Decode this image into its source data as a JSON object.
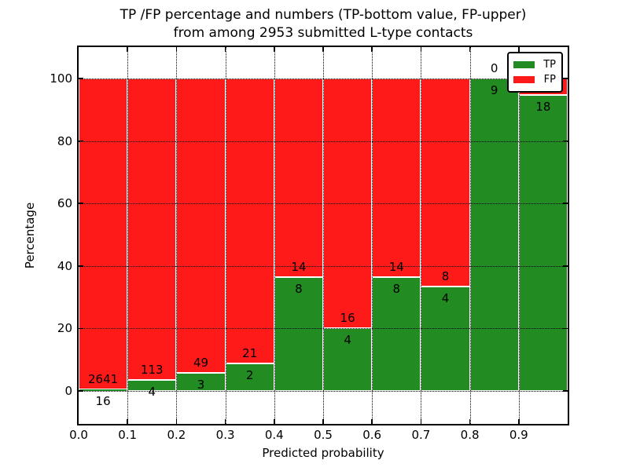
{
  "title": {
    "line1": "TP /FP percentage and numbers (TP-bottom value, FP-upper)",
    "line2": "from among 2953 submitted L-type contacts"
  },
  "axes": {
    "x_label": "Predicted probability",
    "y_label": "Percentage",
    "x_tick_labels": [
      "0.0",
      "0.1",
      "0.2",
      "0.3",
      "0.4",
      "0.5",
      "0.6",
      "0.7",
      "0.8",
      "0.9"
    ],
    "y_tick_labels": [
      "0",
      "20",
      "40",
      "60",
      "80",
      "100"
    ],
    "y_tick_values": [
      0,
      20,
      40,
      60,
      80,
      100
    ]
  },
  "legend": {
    "items": [
      {
        "label": "TP",
        "color": "#228B22"
      },
      {
        "label": "FP",
        "color": "#FF1A1A"
      }
    ]
  },
  "colors": {
    "tp": "#228B22",
    "fp": "#FF1A1A",
    "grid": "#000000",
    "frame": "#000000",
    "background": "#FFFFFF"
  },
  "chart_data": {
    "type": "bar",
    "stacked": true,
    "normalized": "each bar scaled to 100%",
    "title": "TP /FP percentage and numbers (TP-bottom value, FP-upper) from among 2953 submitted L-type contacts",
    "xlabel": "Predicted probability",
    "ylabel": "Percentage",
    "xlim": [
      0.0,
      1.0
    ],
    "ylim": [
      -11,
      110
    ],
    "grid": "dotted",
    "legend_position": "upper right",
    "total_submitted_contacts": 2953,
    "bin_width": 0.1,
    "categories": [
      "0.0-0.1",
      "0.1-0.2",
      "0.2-0.3",
      "0.3-0.4",
      "0.4-0.5",
      "0.5-0.6",
      "0.6-0.7",
      "0.7-0.8",
      "0.8-0.9",
      "0.9-1.0"
    ],
    "series": [
      {
        "name": "TP",
        "color": "#228B22",
        "values": [
          16,
          4,
          3,
          2,
          8,
          4,
          8,
          4,
          9,
          18
        ]
      },
      {
        "name": "FP",
        "color": "#FF1A1A",
        "values": [
          2641,
          113,
          49,
          21,
          14,
          16,
          14,
          8,
          0,
          1
        ]
      }
    ],
    "bins": [
      {
        "range": "0.0-0.1",
        "tp": 16,
        "fp": 2641,
        "tp_pct": 0.6
      },
      {
        "range": "0.1-0.2",
        "tp": 4,
        "fp": 113,
        "tp_pct": 3.4
      },
      {
        "range": "0.2-0.3",
        "tp": 3,
        "fp": 49,
        "tp_pct": 5.8
      },
      {
        "range": "0.3-0.4",
        "tp": 2,
        "fp": 21,
        "tp_pct": 8.7
      },
      {
        "range": "0.4-0.5",
        "tp": 8,
        "fp": 14,
        "tp_pct": 36.4
      },
      {
        "range": "0.5-0.6",
        "tp": 4,
        "fp": 16,
        "tp_pct": 20.0
      },
      {
        "range": "0.6-0.7",
        "tp": 8,
        "fp": 14,
        "tp_pct": 36.4
      },
      {
        "range": "0.7-0.8",
        "tp": 4,
        "fp": 8,
        "tp_pct": 33.3
      },
      {
        "range": "0.8-0.9",
        "tp": 9,
        "fp": 0,
        "tp_pct": 100.0
      },
      {
        "range": "0.9-1.0",
        "tp": 18,
        "fp": 1,
        "tp_pct": 94.7,
        "fp_label_hidden": true
      }
    ]
  }
}
